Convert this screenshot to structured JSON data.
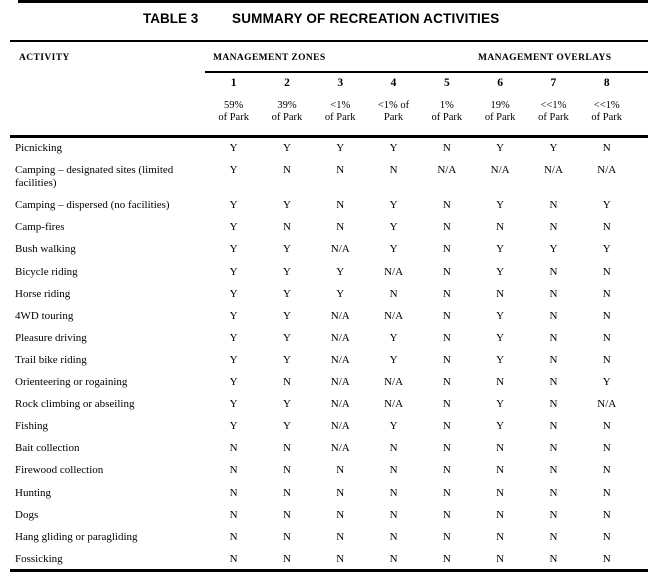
{
  "title": {
    "table_label": "TABLE 3",
    "heading": "SUMMARY OF RECREATION ACTIVITIES"
  },
  "header": {
    "activity": "ACTIVITY",
    "zones": "MANAGEMENT ZONES",
    "overlays": "MANAGEMENT OVERLAYS",
    "columns": [
      {
        "number": "1",
        "pct": [
          "59%",
          "of Park"
        ]
      },
      {
        "number": "2",
        "pct": [
          "39%",
          "of Park"
        ]
      },
      {
        "number": "3",
        "pct": [
          "<1%",
          "of Park"
        ]
      },
      {
        "number": "4",
        "pct": [
          "<1% of",
          "Park"
        ]
      },
      {
        "number": "5",
        "pct": [
          "1%",
          "of Park"
        ]
      },
      {
        "number": "6",
        "pct": [
          "19%",
          "of Park"
        ]
      },
      {
        "number": "7",
        "pct": [
          "<<1%",
          "of Park"
        ]
      },
      {
        "number": "8",
        "pct": [
          "<<1%",
          "of Park"
        ]
      }
    ]
  },
  "rows": [
    {
      "activity": "Picnicking",
      "values": [
        "Y",
        "Y",
        "Y",
        "Y",
        "N",
        "Y",
        "Y",
        "N"
      ]
    },
    {
      "activity": "Camping – designated sites (limited facilities)",
      "values": [
        "Y",
        "N",
        "N",
        "N",
        "N/A",
        "N/A",
        "N/A",
        "N/A"
      ]
    },
    {
      "activity": "Camping – dispersed (no facilities)",
      "values": [
        "Y",
        "Y",
        "N",
        "Y",
        "N",
        "Y",
        "N",
        "Y"
      ]
    },
    {
      "activity": "Camp-fires",
      "values": [
        "Y",
        "N",
        "N",
        "Y",
        "N",
        "N",
        "N",
        "N"
      ]
    },
    {
      "activity": "Bush walking",
      "values": [
        "Y",
        "Y",
        "N/A",
        "Y",
        "N",
        "Y",
        "Y",
        "Y"
      ]
    },
    {
      "activity": "Bicycle riding",
      "values": [
        "Y",
        "Y",
        "Y",
        "N/A",
        "N",
        "Y",
        "N",
        "N"
      ]
    },
    {
      "activity": "Horse riding",
      "values": [
        "Y",
        "Y",
        "Y",
        "N",
        "N",
        "N",
        "N",
        "N"
      ]
    },
    {
      "activity": "4WD touring",
      "values": [
        "Y",
        "Y",
        "N/A",
        "N/A",
        "N",
        "Y",
        "N",
        "N"
      ]
    },
    {
      "activity": "Pleasure driving",
      "values": [
        "Y",
        "Y",
        "N/A",
        "Y",
        "N",
        "Y",
        "N",
        "N"
      ]
    },
    {
      "activity": "Trail bike riding",
      "values": [
        "Y",
        "Y",
        "N/A",
        "Y",
        "N",
        "Y",
        "N",
        "N"
      ]
    },
    {
      "activity": "Orienteering or rogaining",
      "values": [
        "Y",
        "N",
        "N/A",
        "N/A",
        "N",
        "N",
        "N",
        "Y"
      ]
    },
    {
      "activity": "Rock climbing or abseiling",
      "values": [
        "Y",
        "Y",
        "N/A",
        "N/A",
        "N",
        "Y",
        "N",
        "N/A"
      ]
    },
    {
      "activity": "Fishing",
      "values": [
        "Y",
        "Y",
        "N/A",
        "Y",
        "N",
        "Y",
        "N",
        "N"
      ]
    },
    {
      "activity": "Bait collection",
      "values": [
        "N",
        "N",
        "N/A",
        "N",
        "N",
        "N",
        "N",
        "N"
      ]
    },
    {
      "activity": "Firewood collection",
      "values": [
        "N",
        "N",
        "N",
        "N",
        "N",
        "N",
        "N",
        "N"
      ]
    },
    {
      "activity": "Hunting",
      "values": [
        "N",
        "N",
        "N",
        "N",
        "N",
        "N",
        "N",
        "N"
      ]
    },
    {
      "activity": "Dogs",
      "values": [
        "N",
        "N",
        "N",
        "N",
        "N",
        "N",
        "N",
        "N"
      ]
    },
    {
      "activity": "Hang gliding or paragliding",
      "values": [
        "N",
        "N",
        "N",
        "N",
        "N",
        "N",
        "N",
        "N"
      ]
    },
    {
      "activity": "Fossicking",
      "values": [
        "N",
        "N",
        "N",
        "N",
        "N",
        "N",
        "N",
        "N"
      ]
    }
  ]
}
